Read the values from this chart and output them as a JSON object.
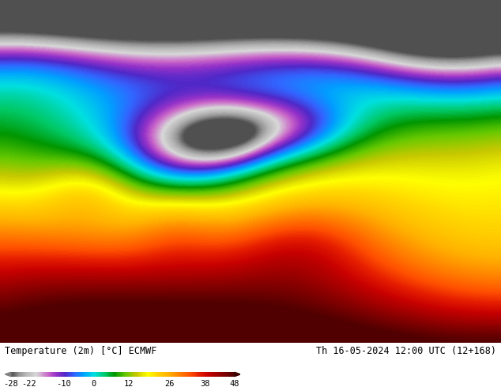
{
  "title_left": "Temperature (2m) [°C] ECMWF",
  "title_right": "Th 16-05-2024 12:00 UTC (12+168)",
  "colorbar_ticks": [
    -28,
    -22,
    -10,
    0,
    12,
    26,
    38,
    48
  ],
  "vmin": -28,
  "vmax": 48,
  "cmap_stops": [
    [
      0.0,
      "#505050"
    ],
    [
      0.03,
      "#909090"
    ],
    [
      0.06,
      "#b4b4b4"
    ],
    [
      0.11,
      "#d8d8d8"
    ],
    [
      0.165,
      "#c864c8"
    ],
    [
      0.2,
      "#9632c8"
    ],
    [
      0.24,
      "#5028c8"
    ],
    [
      0.28,
      "#3264ff"
    ],
    [
      0.32,
      "#00a0ff"
    ],
    [
      0.37,
      "#00e0e0"
    ],
    [
      0.42,
      "#00c864"
    ],
    [
      0.46,
      "#009600"
    ],
    [
      0.51,
      "#64c800"
    ],
    [
      0.56,
      "#c8c800"
    ],
    [
      0.61,
      "#ffff00"
    ],
    [
      0.65,
      "#ffd700"
    ],
    [
      0.7,
      "#ffb400"
    ],
    [
      0.75,
      "#ff8200"
    ],
    [
      0.8,
      "#ff5000"
    ],
    [
      0.84,
      "#e61e00"
    ],
    [
      0.88,
      "#c80000"
    ],
    [
      0.93,
      "#960000"
    ],
    [
      1.0,
      "#500000"
    ]
  ],
  "fig_width": 6.34,
  "fig_height": 4.9,
  "dpi": 100
}
